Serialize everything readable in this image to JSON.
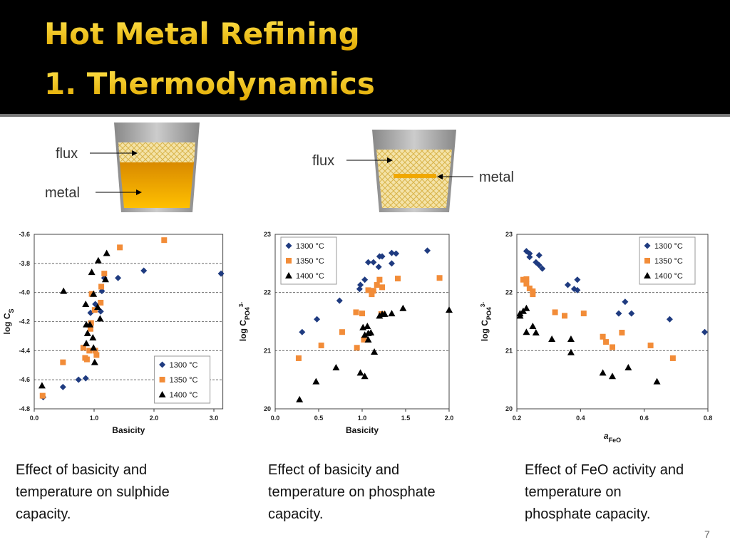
{
  "header": {
    "title_lines": [
      "Hot Metal Refining",
      "1. Thermodynamics"
    ]
  },
  "diagrams": [
    {
      "flux": "flux",
      "metal": "metal"
    },
    {
      "flux": "flux",
      "metal": "metal"
    }
  ],
  "chart_data": [
    {
      "type": "scatter",
      "xlabel": "Basicity",
      "ylabel": {
        "text": "log C",
        "sub": "S"
      },
      "xlim": [
        0,
        3.15
      ],
      "ylim": [
        -4.8,
        -3.6
      ],
      "xticks": [
        {
          "value": 0,
          "label": "0.0"
        },
        {
          "value": 1,
          "label": "1.0"
        },
        {
          "value": 2,
          "label": "2.0"
        },
        {
          "value": 3,
          "label": "3.0"
        }
      ],
      "yticks": [
        -4.8,
        -4.6,
        -4.4,
        -4.2,
        {
          "value": -4,
          "label": "-4.0"
        },
        -3.8,
        -3.6
      ],
      "grid": true,
      "legend": "lower right",
      "series": [
        {
          "name": "1300 °C",
          "color": "#1f3b80",
          "marker": "diamond",
          "x": [
            0.15,
            0.48,
            0.74,
            0.86,
            0.94,
            1.02,
            1.11,
            1.13,
            1.17,
            1.4,
            1.83,
            3.12
          ],
          "values": [
            -4.72,
            -4.65,
            -4.6,
            -4.59,
            -4.14,
            -4.08,
            -4.13,
            -3.99,
            -3.9,
            -3.9,
            -3.85,
            -3.87
          ]
        },
        {
          "name": "1350 °C",
          "color": "#f28c38",
          "marker": "square",
          "x": [
            0.14,
            0.48,
            0.82,
            0.85,
            0.88,
            0.92,
            0.94,
            0.95,
            0.96,
            1.01,
            1.02,
            1.04,
            1.11,
            1.12,
            1.17,
            1.43,
            2.17
          ],
          "values": [
            -4.71,
            -4.48,
            -4.38,
            -4.45,
            -4.46,
            -4.4,
            -4.25,
            -4.21,
            -4.01,
            -4.12,
            -4.4,
            -4.43,
            -4.07,
            -3.96,
            -3.87,
            -3.69,
            -3.64
          ]
        },
        {
          "name": "1400 °C",
          "color": "#000000",
          "marker": "triangle",
          "x": [
            0.13,
            0.49,
            0.86,
            0.87,
            0.87,
            0.89,
            0.93,
            0.96,
            0.99,
            0.98,
            0.99,
            1.01,
            1.06,
            1.1,
            1.07,
            1.19,
            1.21
          ],
          "values": [
            -4.64,
            -3.99,
            -4.08,
            -4.22,
            -4.35,
            -4.28,
            -4.22,
            -3.86,
            -4.01,
            -4.31,
            -4.38,
            -4.48,
            -4.1,
            -4.18,
            -3.78,
            -3.91,
            -3.73
          ]
        }
      ]
    },
    {
      "type": "scatter",
      "xlabel": "Basicity",
      "ylabel": {
        "text": "log C",
        "sub": "PO4",
        "sup": "3-"
      },
      "xlim": [
        0,
        2.0
      ],
      "ylim": [
        20,
        23
      ],
      "xticks": [
        {
          "value": 0,
          "label": "0.0"
        },
        0.5,
        {
          "value": 1,
          "label": "1.0"
        },
        1.5,
        {
          "value": 2,
          "label": "2.0"
        }
      ],
      "yticks": [
        20,
        21,
        22,
        23
      ],
      "grid": true,
      "legend": "upper left",
      "series": [
        {
          "name": "1300 °C",
          "color": "#1f3b80",
          "marker": "diamond",
          "x": [
            0.31,
            0.48,
            0.74,
            0.97,
            0.98,
            1.03,
            1.07,
            1.13,
            1.19,
            1.2,
            1.23,
            1.34,
            1.39,
            1.34,
            1.75
          ],
          "values": [
            21.32,
            21.54,
            21.86,
            22.06,
            22.13,
            22.22,
            22.52,
            22.52,
            22.44,
            22.62,
            22.62,
            22.68,
            22.67,
            22.5,
            22.72
          ]
        },
        {
          "name": "1350 °C",
          "color": "#f28c38",
          "marker": "square",
          "x": [
            0.27,
            0.53,
            0.77,
            0.93,
            0.94,
            1.0,
            1.02,
            1.07,
            1.11,
            1.13,
            1.17,
            1.2,
            1.23,
            1.22,
            1.41,
            1.89
          ],
          "values": [
            20.87,
            21.09,
            21.32,
            21.66,
            21.05,
            21.64,
            21.19,
            22.04,
            21.97,
            22.03,
            22.13,
            22.22,
            22.09,
            21.63,
            22.24,
            22.25
          ]
        },
        {
          "name": "1400 °C",
          "color": "#000000",
          "marker": "triangle",
          "x": [
            0.28,
            0.47,
            0.7,
            0.98,
            1.03,
            1.01,
            1.06,
            1.07,
            1.1,
            1.03,
            1.07,
            1.14,
            1.2,
            1.23,
            1.26,
            1.34,
            1.47,
            2.0
          ],
          "values": [
            20.16,
            20.47,
            20.71,
            20.62,
            20.56,
            21.4,
            21.42,
            21.3,
            21.31,
            21.27,
            21.19,
            20.98,
            21.6,
            21.63,
            21.63,
            21.64,
            21.73,
            21.7
          ]
        }
      ]
    },
    {
      "type": "scatter",
      "xlabel": {
        "text": "a",
        "sub": "FeO"
      },
      "ylabel": {
        "text": "log C",
        "sub": "PO4",
        "sup": "3-"
      },
      "xlim": [
        0.2,
        0.8
      ],
      "ylim": [
        20,
        23
      ],
      "xticks": [
        0.2,
        0.4,
        0.6,
        0.8
      ],
      "yticks": [
        20,
        21,
        22,
        23
      ],
      "grid": true,
      "legend": "upper right",
      "series": [
        {
          "name": "1300 °C",
          "color": "#1f3b80",
          "marker": "diamond",
          "x": [
            0.23,
            0.24,
            0.24,
            0.26,
            0.27,
            0.27,
            0.28,
            0.36,
            0.38,
            0.39,
            0.39,
            0.52,
            0.54,
            0.56,
            0.68,
            0.79
          ],
          "values": [
            22.71,
            22.67,
            22.61,
            22.52,
            22.64,
            22.47,
            22.41,
            22.13,
            22.06,
            22.22,
            22.04,
            21.64,
            21.84,
            21.64,
            21.54,
            21.32
          ]
        },
        {
          "name": "1350 °C",
          "color": "#f28c38",
          "marker": "square",
          "x": [
            0.22,
            0.23,
            0.23,
            0.24,
            0.25,
            0.25,
            0.32,
            0.35,
            0.41,
            0.47,
            0.48,
            0.5,
            0.53,
            0.62,
            0.69
          ],
          "values": [
            22.22,
            22.23,
            22.15,
            22.07,
            22.02,
            21.97,
            21.66,
            21.6,
            21.64,
            21.24,
            21.15,
            21.06,
            21.31,
            21.09,
            20.87
          ]
        },
        {
          "name": "1400 °C",
          "color": "#000000",
          "marker": "triangle",
          "x": [
            0.21,
            0.21,
            0.22,
            0.23,
            0.23,
            0.25,
            0.26,
            0.31,
            0.37,
            0.37,
            0.47,
            0.5,
            0.55,
            0.64
          ],
          "values": [
            21.64,
            21.6,
            21.68,
            21.73,
            21.32,
            21.42,
            21.31,
            21.2,
            21.2,
            20.97,
            20.62,
            20.56,
            20.71,
            20.47
          ]
        }
      ]
    }
  ],
  "captions": [
    [
      "Effect of basicity and",
      "temperature on sulphide",
      "capacity."
    ],
    [
      "Effect of basicity and",
      "temperature on phosphate",
      "capacity."
    ],
    [
      "Effect of FeO activity and",
      "temperature on",
      "phosphate capacity."
    ]
  ],
  "page_number": "7"
}
